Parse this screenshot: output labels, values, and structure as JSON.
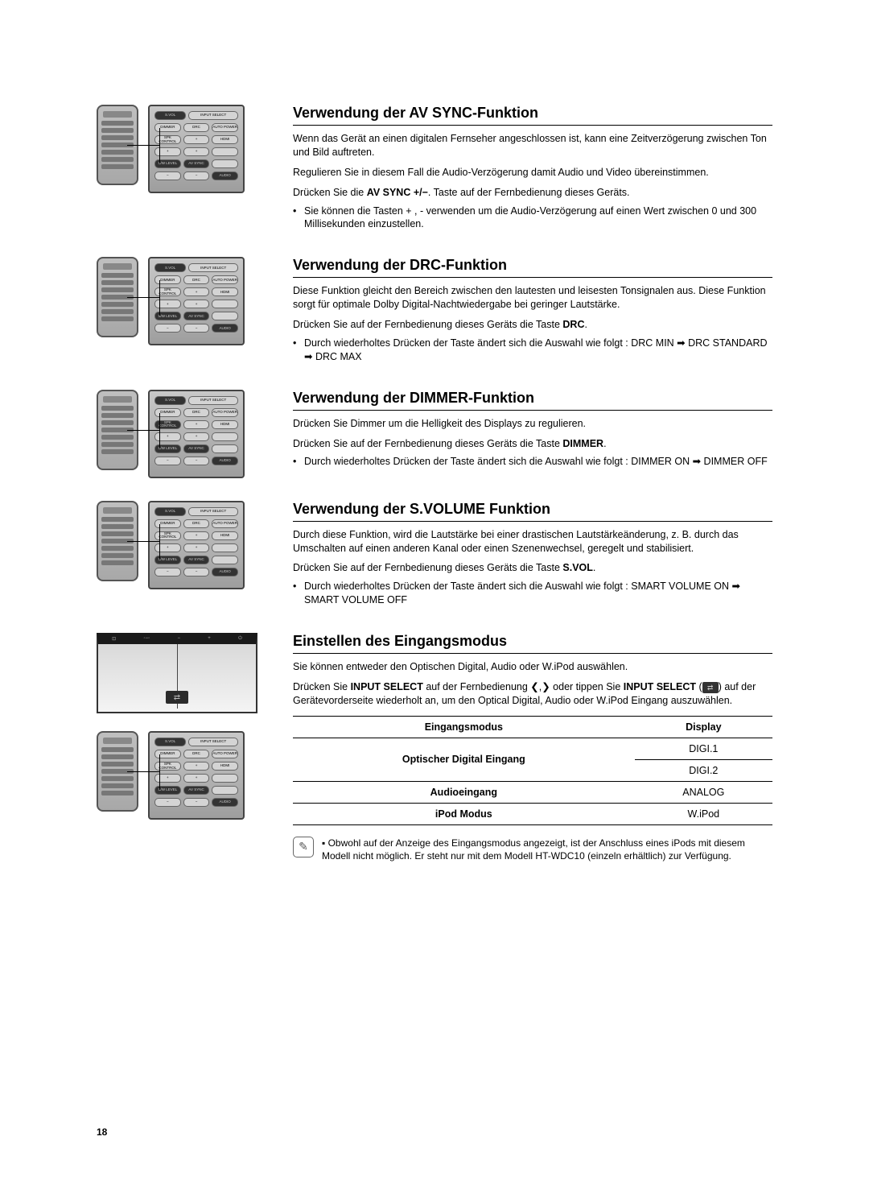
{
  "pageNumber": "18",
  "remoteLabels": {
    "svol": "S.VOL",
    "input": "INPUT SELECT",
    "dimmer": "DIMMER",
    "drc": "DRC",
    "auto": "AUTO POWER",
    "spk": "SPK CONTROL",
    "hdmi": "HDMI",
    "swlevel": "S/W LEVEL",
    "avsync": "AV SYNC",
    "audio": "AUDIO"
  },
  "sections": [
    {
      "title": "Verwendung der AV SYNC-Funktion",
      "paras": [
        "Wenn das Gerät an einen digitalen Fernseher angeschlossen ist, kann eine Zeitverzögerung zwischen Ton und Bild auftreten.",
        "Regulieren Sie in diesem Fall die Audio-Verzögerung damit Audio und Video übereinstimmen."
      ],
      "instr_prefix": "Drücken Sie die ",
      "instr_bold": "AV SYNC +/−",
      "instr_suffix": ". Taste auf der Fernbedienung dieses Geräts.",
      "bullets": [
        "Sie können die Tasten + , - verwenden um die Audio-Verzögerung auf einen Wert zwischen 0 und 300 Millisekunden einzustellen."
      ]
    },
    {
      "title": "Verwendung der DRC-Funktion",
      "paras": [
        "Diese Funktion gleicht den Bereich zwischen den lautesten und leisesten Tonsignalen aus. Diese Funktion sorgt für optimale Dolby Digital-Nachtwiedergabe bei geringer Lautstärke."
      ],
      "instr_prefix": "Drücken Sie auf der Fernbedienung dieses Geräts die Taste ",
      "instr_bold": "DRC",
      "instr_suffix": ".",
      "bullets": [
        "Durch wiederholtes Drücken der Taste ändert sich die Auswahl wie folgt : DRC MIN ➡ DRC STANDARD ➡ DRC MAX"
      ]
    },
    {
      "title": "Verwendung der DIMMER-Funktion",
      "paras": [
        "Drücken Sie Dimmer um die Helligkeit des Displays zu regulieren."
      ],
      "instr_prefix": "Drücken Sie auf der Fernbedienung dieses Geräts die Taste ",
      "instr_bold": "DIMMER",
      "instr_suffix": ".",
      "bullets": [
        "Durch wiederholtes Drücken der Taste ändert sich die Auswahl wie folgt : DIMMER ON ➡ DIMMER OFF"
      ]
    },
    {
      "title": "Verwendung der S.VOLUME Funktion",
      "paras": [
        "Durch diese Funktion, wird die Lautstärke bei einer drastischen Lautstärkeänderung, z. B. durch das Umschalten auf einen anderen Kanal oder einen Szenenwechsel, geregelt und stabilisiert."
      ],
      "instr_prefix": "Drücken Sie auf der Fernbedienung dieses Geräts die Taste ",
      "instr_bold": "S.VOL",
      "instr_suffix": ".",
      "bullets": [
        "Durch wiederholtes Drücken der Taste ändert sich die Auswahl wie folgt : SMART VOLUME ON ➡ SMART VOLUME OFF"
      ]
    }
  ],
  "section5": {
    "title": "Einstellen des Eingangsmodus",
    "p1": "Sie können entweder den Optischen Digital, Audio oder W.iPod auswählen.",
    "p2_a": "Drücken Sie ",
    "p2_bold1": "INPUT SELECT",
    "p2_b": " auf der Fernbedienung ❮,❯ oder tippen Sie ",
    "p2_bold2": "INPUT SELECT",
    "p2_c": " (",
    "p2_d": ") auf der Gerätevorderseite wiederholt an, um den Optical Digital, Audio oder W.iPod Eingang auszuwählen."
  },
  "table": {
    "h1": "Eingangsmodus",
    "h2": "Display",
    "r1c1": "Optischer Digital Eingang",
    "r1c2a": "DIGI.1",
    "r1c2b": "DIGI.2",
    "r2c1": "Audioeingang",
    "r2c2": "ANALOG",
    "r3c1": "iPod Modus",
    "r3c2": "W.iPod"
  },
  "note": "Obwohl auf der Anzeige des Eingangsmodus angezeigt, ist der Anschluss eines iPods mit diesem Modell nicht möglich. Er steht nur mit dem Modell HT-WDC10 (einzeln erhältlich) zur Verfügung.",
  "topbar": {
    "a": "⊡",
    "b": "◦−◦",
    "c": "−",
    "d": "+",
    "e": "⏻"
  }
}
